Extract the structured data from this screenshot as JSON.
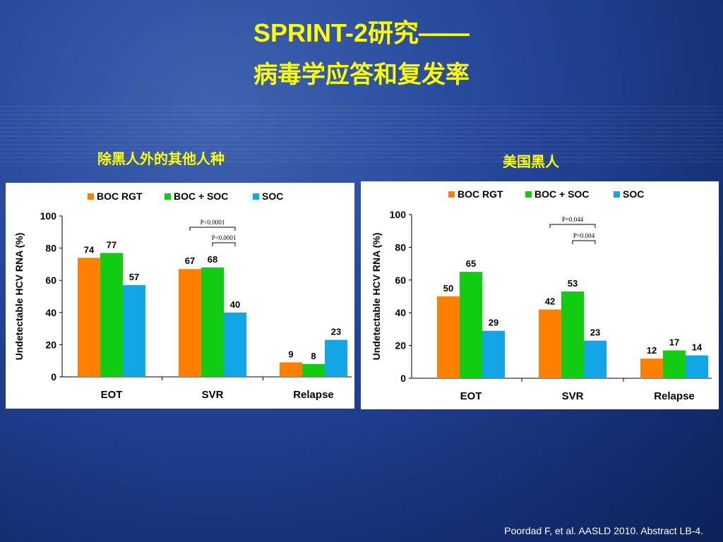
{
  "slide": {
    "title_line1": "SPRINT-2研究——",
    "title_line2": "病毒学应答和复发率",
    "subtitle_left": "除黑人外的其他人种",
    "subtitle_right": "美国黑人",
    "citation": "Poordad F, et al. AASLD 2010. Abstract LB-4."
  },
  "colors": {
    "boc_rgt": "#ff8000",
    "boc_soc": "#12cc12",
    "soc": "#12a6e6",
    "title": "#ffff00"
  },
  "chart_data": [
    {
      "type": "bar",
      "categories": [
        "EOT",
        "SVR",
        "Relapse"
      ],
      "series": [
        {
          "name": "BOC RGT",
          "values": [
            74,
            67,
            9
          ]
        },
        {
          "name": "BOC + SOC",
          "values": [
            77,
            68,
            8
          ]
        },
        {
          "name": "SOC",
          "values": [
            57,
            40,
            23
          ]
        }
      ],
      "ylabel": "Undetectable HCV RNA (%)",
      "ylim": [
        0,
        100
      ],
      "yticks": [
        0,
        20,
        40,
        60,
        80,
        100
      ],
      "legend_position": "top",
      "annotations": [
        "P<0.0001",
        "P<0.0001"
      ]
    },
    {
      "type": "bar",
      "categories": [
        "EOT",
        "SVR",
        "Relapse"
      ],
      "series": [
        {
          "name": "BOC RGT",
          "values": [
            50,
            42,
            12
          ]
        },
        {
          "name": "BOC + SOC",
          "values": [
            65,
            53,
            17
          ]
        },
        {
          "name": "SOC",
          "values": [
            29,
            23,
            14
          ]
        }
      ],
      "ylabel": "Undetectable HCV RNA (%)",
      "ylim": [
        0,
        100
      ],
      "yticks": [
        0,
        20,
        40,
        60,
        80,
        100
      ],
      "legend_position": "top",
      "annotations": [
        "P=0.044",
        "P=0.004"
      ]
    }
  ]
}
